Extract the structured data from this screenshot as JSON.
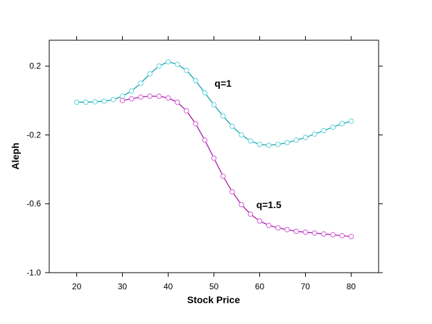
{
  "chart_data": {
    "type": "line",
    "xlabel": "Stock Price",
    "ylabel": "Aleph",
    "xlim": [
      14,
      86
    ],
    "ylim": [
      -1.0,
      0.35
    ],
    "xticks": [
      "20",
      "30",
      "40",
      "50",
      "60",
      "70",
      "80"
    ],
    "yticks": [
      "0.2",
      "-0.2",
      "-0.6",
      "-1.0"
    ],
    "grid": false,
    "series": [
      {
        "name": "q=1",
        "color": "#17a2a6",
        "marker_color": "#5cd3dc",
        "label_at": [
          52,
          0.1
        ],
        "x": [
          20,
          22,
          24,
          26,
          28,
          30,
          32,
          34,
          36,
          38,
          40,
          42,
          44,
          46,
          48,
          50,
          52,
          54,
          56,
          58,
          60,
          62,
          64,
          66,
          68,
          70,
          72,
          74,
          76,
          78,
          80
        ],
        "y": [
          -0.01,
          -0.01,
          -0.008,
          -0.004,
          0.005,
          0.025,
          0.055,
          0.1,
          0.155,
          0.2,
          0.225,
          0.21,
          0.175,
          0.115,
          0.045,
          -0.025,
          -0.09,
          -0.15,
          -0.2,
          -0.235,
          -0.255,
          -0.26,
          -0.255,
          -0.245,
          -0.23,
          -0.215,
          -0.195,
          -0.175,
          -0.155,
          -0.135,
          -0.12
        ]
      },
      {
        "name": "q=1.5",
        "color": "#a11aa1",
        "marker_color": "#d45ad8",
        "label_at": [
          62,
          -0.605
        ],
        "x": [
          30,
          32,
          34,
          36,
          38,
          40,
          42,
          44,
          46,
          48,
          50,
          52,
          54,
          56,
          58,
          60,
          62,
          64,
          66,
          68,
          70,
          72,
          74,
          76,
          78,
          80
        ],
        "y": [
          0.0,
          0.01,
          0.02,
          0.025,
          0.025,
          0.015,
          -0.01,
          -0.06,
          -0.135,
          -0.23,
          -0.335,
          -0.44,
          -0.53,
          -0.605,
          -0.66,
          -0.7,
          -0.725,
          -0.74,
          -0.75,
          -0.76,
          -0.765,
          -0.77,
          -0.775,
          -0.78,
          -0.785,
          -0.79
        ]
      }
    ]
  }
}
